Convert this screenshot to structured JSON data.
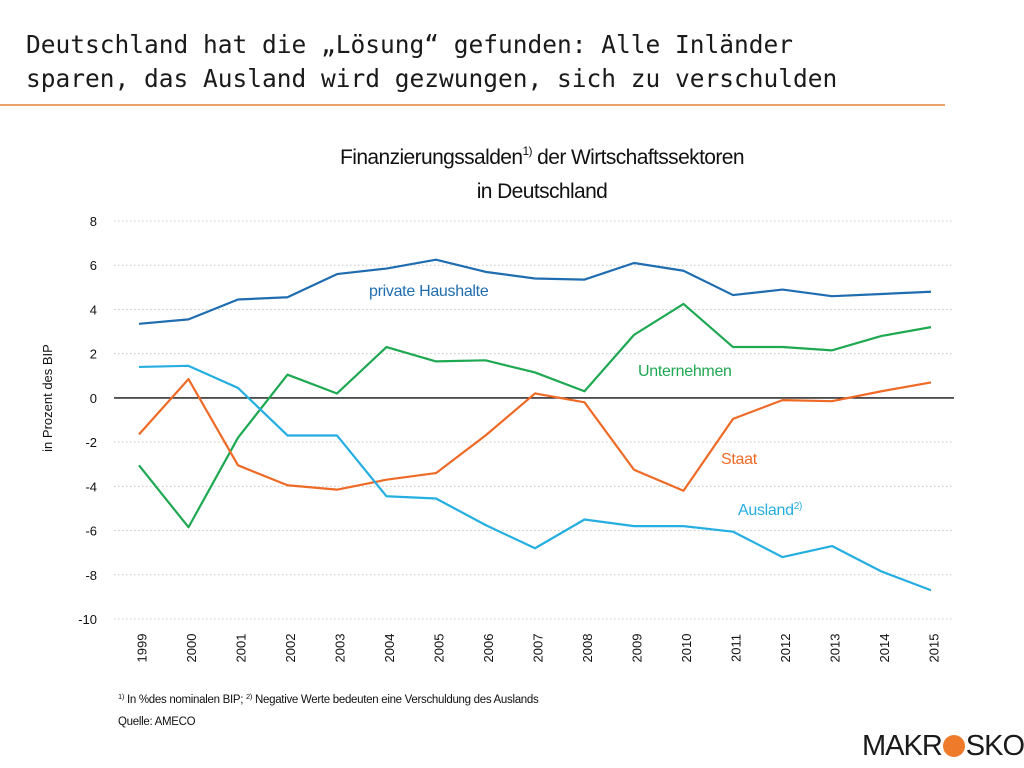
{
  "slide": {
    "title_line1": "Deutschland hat die „Lösung“ gefunden: Alle Inländer",
    "title_line2": "sparen, das Ausland wird gezwungen, sich zu verschulden",
    "accent_color": "#e8a36b"
  },
  "footnote": {
    "sup1": "1)",
    "text1": "In %des nominalen BIP;",
    "sup2": "2)",
    "text2": "Negative Werte bedeuten eine Verschuldung des Auslands",
    "source": "Quelle: AMECO"
  },
  "logo": {
    "left": "MAKR",
    "right": "SKOP",
    "dot_color": "#ee7a2a"
  },
  "chart_data": {
    "type": "line",
    "title_line1": "Finanzierungssalden",
    "title_sup": "1)",
    "title_line1_rest": " der Wirtschaftssektoren",
    "title_line2": "in Deutschland",
    "ylabel": "in Prozent des BIP",
    "xlabel": "",
    "ylim": [
      -10,
      8
    ],
    "yticks": [
      8,
      6,
      4,
      2,
      0,
      -2,
      -4,
      -6,
      -8,
      -10
    ],
    "ytick_labels": [
      "8",
      "6",
      "4",
      "2",
      "0",
      "-2",
      "-4",
      "-6",
      "-8",
      "-10"
    ],
    "grid": "horizontal dotted",
    "categories": [
      "1999",
      "2000",
      "2001",
      "2002",
      "2003",
      "2004",
      "2005",
      "2006",
      "2007",
      "2008",
      "2009",
      "2010",
      "2011",
      "2012",
      "2013",
      "2014",
      "2015"
    ],
    "series": [
      {
        "name": "private Haushalte",
        "sup": "",
        "color": "#1f6db0",
        "values": [
          3.35,
          3.55,
          4.45,
          4.55,
          5.6,
          5.85,
          6.25,
          5.7,
          5.4,
          5.35,
          6.1,
          5.75,
          4.65,
          4.9,
          4.6,
          4.7,
          4.8
        ]
      },
      {
        "name": "Unternehmen",
        "sup": "",
        "color": "#1ea852",
        "values": [
          -3.05,
          -5.85,
          -1.8,
          1.05,
          0.2,
          2.3,
          1.65,
          1.7,
          1.15,
          0.3,
          2.85,
          4.25,
          2.3,
          2.3,
          2.15,
          2.8,
          3.2
        ]
      },
      {
        "name": "Staat",
        "sup": "",
        "color": "#ee6a26",
        "values": [
          -1.65,
          0.85,
          -3.05,
          -3.95,
          -4.15,
          -3.7,
          -3.4,
          -1.7,
          0.2,
          -0.2,
          -3.25,
          -4.2,
          -0.95,
          -0.1,
          -0.15,
          0.3,
          0.7
        ]
      },
      {
        "name": "Ausland",
        "sup": "2)",
        "color": "#25aee0",
        "values": [
          1.4,
          1.45,
          0.45,
          -1.7,
          -1.7,
          -4.45,
          -4.55,
          -5.75,
          -6.8,
          -5.5,
          -5.8,
          -5.8,
          -6.05,
          -7.2,
          -6.7,
          -7.85,
          -8.7
        ]
      }
    ]
  }
}
